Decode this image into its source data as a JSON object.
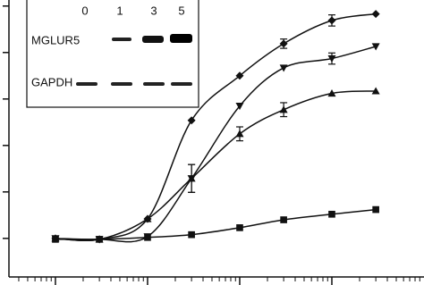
{
  "chart_data": {
    "type": "scatter",
    "log_x": true,
    "xlim": [
      0.313,
      10000
    ],
    "ylim": [
      0.17,
      6.13
    ],
    "xticks": [
      1,
      10,
      100,
      1000
    ],
    "yticks": [
      1,
      2,
      3,
      4,
      5,
      6
    ],
    "x": [
      1,
      3,
      10,
      30,
      100,
      300,
      1000,
      3000
    ],
    "series": [
      {
        "marker": "diamond",
        "color": "#111111",
        "values": [
          1,
          0.98,
          1.42,
          3.54,
          4.5,
          5.19,
          5.69,
          5.83
        ],
        "errors": [
          null,
          null,
          null,
          null,
          null,
          0.1,
          0.12,
          null
        ]
      },
      {
        "marker": "triangle-down",
        "color": "#111111",
        "values": [
          1,
          0.98,
          1.04,
          2.29,
          3.85,
          4.67,
          4.87,
          5.13
        ],
        "errors": [
          null,
          null,
          null,
          0.3,
          null,
          null,
          0.12,
          null
        ]
      },
      {
        "marker": "triangle-up",
        "color": "#111111",
        "values": [
          1,
          0.98,
          1.42,
          2.29,
          3.25,
          3.77,
          4.12,
          4.17
        ],
        "errors": [
          null,
          null,
          null,
          0.3,
          0.15,
          0.15,
          null,
          null
        ]
      },
      {
        "marker": "square",
        "color": "#111111",
        "values": [
          0.98,
          0.98,
          1.02,
          1.08,
          1.23,
          1.4,
          1.52,
          1.62
        ],
        "errors": [
          null,
          null,
          null,
          null,
          null,
          null,
          null,
          null
        ]
      }
    ],
    "inset": {
      "lanes": [
        "0",
        "1",
        "3",
        "5"
      ],
      "rows": [
        "MGLUR5",
        "GAPDH"
      ]
    }
  }
}
